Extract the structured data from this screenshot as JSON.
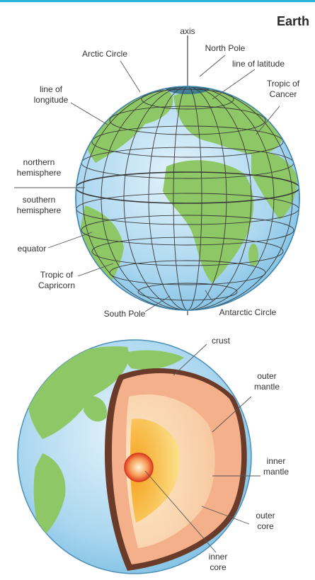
{
  "title": "Earth",
  "colors": {
    "accent_rule": "#2bb3dc",
    "ocean": "#a9d6ef",
    "land": "#8ec765",
    "crust": "#6b3b2a",
    "outer_mantle": "#f4b08a",
    "inner_mantle": "#fde2b4",
    "outer_core": "#f7b733",
    "inner_core": "#e84a2b"
  },
  "globe_labels": {
    "axis": "axis",
    "north_pole": "North Pole",
    "arctic_circle": "Arctic Circle",
    "line_of_latitude": "line of latitude",
    "tropic_of_cancer_1": "Tropic of",
    "tropic_of_cancer_2": "Cancer",
    "line_of_longitude_1": "line of",
    "line_of_longitude_2": "longitude",
    "northern_hemisphere_1": "northern",
    "northern_hemisphere_2": "hemisphere",
    "southern_hemisphere_1": "southern",
    "southern_hemisphere_2": "hemisphere",
    "equator": "equator",
    "tropic_of_capricorn_1": "Tropic of",
    "tropic_of_capricorn_2": "Capricorn",
    "south_pole": "South Pole",
    "antarctic_circle": "Antarctic Circle"
  },
  "interior_labels": {
    "crust": "crust",
    "outer_mantle_1": "outer",
    "outer_mantle_2": "mantle",
    "inner_mantle_1": "inner",
    "inner_mantle_2": "mantle",
    "outer_core_1": "outer",
    "outer_core_2": "core",
    "inner_core_1": "inner",
    "inner_core_2": "core"
  }
}
